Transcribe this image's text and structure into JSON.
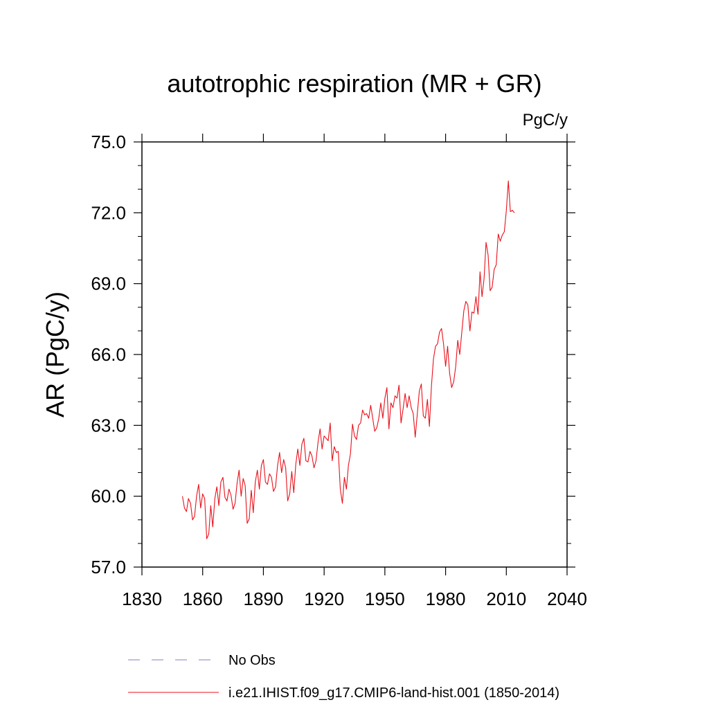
{
  "chart_data": {
    "type": "line",
    "title": "autotrophic respiration (MR + GR)",
    "units": "PgC/y",
    "ylabel": "AR  (PgC/y)",
    "xlabel": "",
    "xlim": [
      1830,
      2040
    ],
    "ylim": [
      57.0,
      75.0
    ],
    "x_ticks": [
      1830,
      1860,
      1890,
      1920,
      1950,
      1980,
      2010,
      2040
    ],
    "x_tick_labels": [
      "1830",
      "1860",
      "1890",
      "1920",
      "1950",
      "1980",
      "2010",
      "2040"
    ],
    "y_ticks": [
      57.0,
      60.0,
      63.0,
      66.0,
      69.0,
      72.0,
      75.0
    ],
    "y_tick_labels": [
      "57.0",
      "60.0",
      "63.0",
      "66.0",
      "69.0",
      "72.0",
      "75.0"
    ],
    "grid": false,
    "legend_position": "bottom",
    "series": [
      {
        "name": "No Obs",
        "color": "#8080c0",
        "style": "dashed",
        "values": []
      },
      {
        "name": "i.e21.IHIST.f09_g17.CMIP6-land-hist.001 (1850-2014)",
        "color": "#e8101a",
        "style": "solid",
        "x_start": 1850,
        "values": [
          60.0,
          59.5,
          59.35,
          59.9,
          59.7,
          59.0,
          59.15,
          60.0,
          60.5,
          59.5,
          60.1,
          59.9,
          58.2,
          58.4,
          59.6,
          58.7,
          59.9,
          60.4,
          59.6,
          60.6,
          60.8,
          59.95,
          59.8,
          60.3,
          60.05,
          59.45,
          59.7,
          60.55,
          61.1,
          60.0,
          60.75,
          60.45,
          58.85,
          59.05,
          60.25,
          59.3,
          60.6,
          61.1,
          60.3,
          61.3,
          61.55,
          60.6,
          60.5,
          60.95,
          60.8,
          60.2,
          60.4,
          61.3,
          61.85,
          61.0,
          61.55,
          61.2,
          59.8,
          60.1,
          61.05,
          60.15,
          61.35,
          62.0,
          61.3,
          62.2,
          62.45,
          61.5,
          61.45,
          61.9,
          61.7,
          61.2,
          61.5,
          62.3,
          62.85,
          62.0,
          62.55,
          62.45,
          62.35,
          63.1,
          61.5,
          62.1,
          61.85,
          61.9,
          60.3,
          59.7,
          60.8,
          60.3,
          61.3,
          61.8,
          63.05,
          62.55,
          62.4,
          63.0,
          63.1,
          63.65,
          63.45,
          63.5,
          63.3,
          63.85,
          63.3,
          62.75,
          62.9,
          63.3,
          63.95,
          63.3,
          64.15,
          64.6,
          62.85,
          63.95,
          63.75,
          64.25,
          64.15,
          64.7,
          63.1,
          63.7,
          64.35,
          63.75,
          64.25,
          63.75,
          63.5,
          62.5,
          63.45,
          64.45,
          64.75,
          63.4,
          63.3,
          64.1,
          62.95,
          64.65,
          65.8,
          66.35,
          66.45,
          66.95,
          67.1,
          66.45,
          65.5,
          66.35,
          65.2,
          64.6,
          64.85,
          65.5,
          66.6,
          66.0,
          66.95,
          67.85,
          68.25,
          68.1,
          67.0,
          67.8,
          67.75,
          68.45,
          67.7,
          69.5,
          68.45,
          69.2,
          70.75,
          70.2,
          68.7,
          68.85,
          69.6,
          69.8,
          71.1,
          70.8,
          71.05,
          71.2,
          72.1,
          73.35,
          72.05,
          72.1,
          72.0
        ]
      }
    ]
  }
}
